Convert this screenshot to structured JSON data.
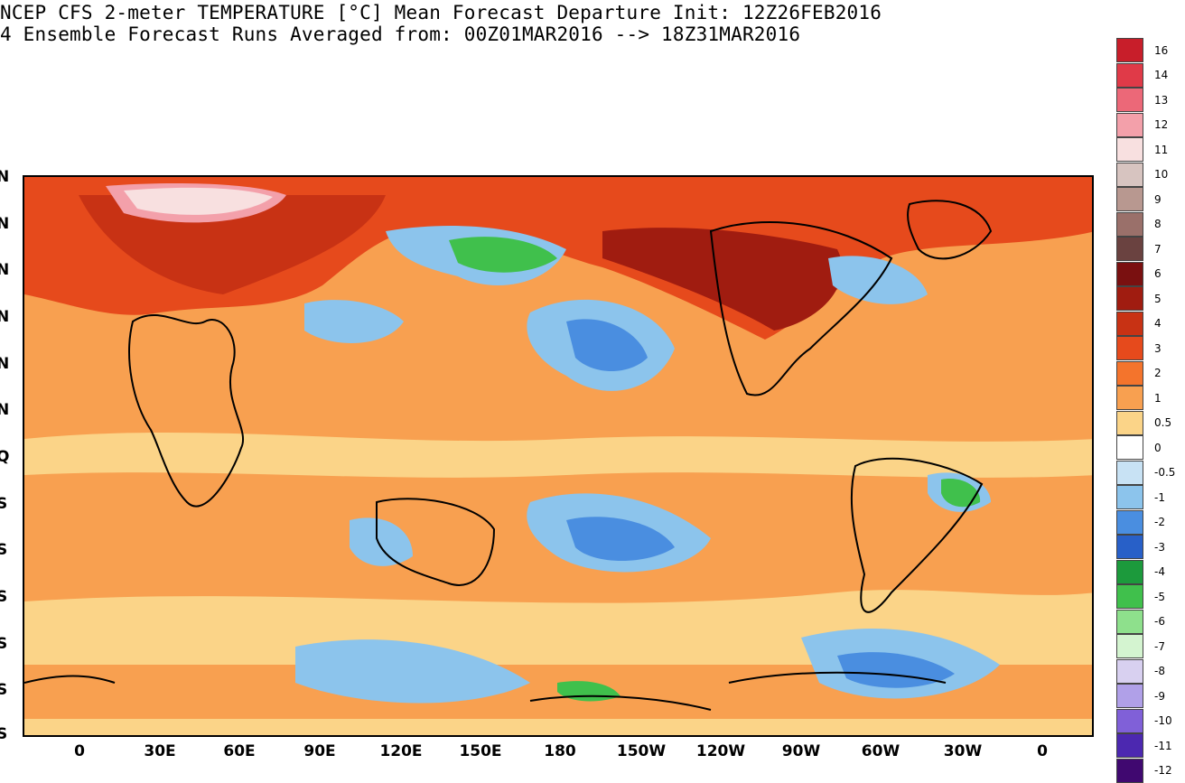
{
  "header": {
    "line1": "NCEP CFS 2-meter TEMPERATURE [°C] Mean Forecast Departure Init: 12Z26FEB2016",
    "line2": "4 Ensemble Forecast Runs Averaged from: 00Z01MAR2016 --> 18Z31MAR2016"
  },
  "map": {
    "lat_labels": [
      "N",
      "N",
      "N",
      "N",
      "N",
      "N",
      "Q",
      "S",
      "S",
      "S",
      "S",
      "S",
      "S"
    ],
    "lon_labels": [
      "0",
      "30E",
      "60E",
      "90E",
      "120E",
      "150E",
      "180",
      "150W",
      "120W",
      "90W",
      "60W",
      "30W",
      "0"
    ]
  },
  "colorbar": {
    "labels": [
      "16",
      "14",
      "13",
      "12",
      "11",
      "10",
      "9",
      "8",
      "7",
      "6",
      "5",
      "4",
      "3",
      "2",
      "1",
      "0.5",
      "0",
      "-0.5",
      "-1",
      "-2",
      "-3",
      "-4",
      "-5",
      "-6",
      "-7",
      "-8",
      "-9",
      "-10",
      "-11",
      "-12"
    ],
    "colors": [
      "#c81e2a",
      "#e03a48",
      "#ec6878",
      "#f3a0aa",
      "#f8e0e0",
      "#d7c4c0",
      "#b89890",
      "#9a706a",
      "#6a4240",
      "#7a1010",
      "#a01c10",
      "#c83214",
      "#e64a1c",
      "#f4742c",
      "#f8a050",
      "#fbd488",
      "#ffffff",
      "#c8e2f4",
      "#8cc4ec",
      "#4a8ee0",
      "#2860c8",
      "#1c9a3c",
      "#40c04c",
      "#8ee08c",
      "#d4f4d0",
      "#d8d0f0",
      "#b0a0e8",
      "#8060d8",
      "#4c28b0",
      "#400870"
    ]
  }
}
